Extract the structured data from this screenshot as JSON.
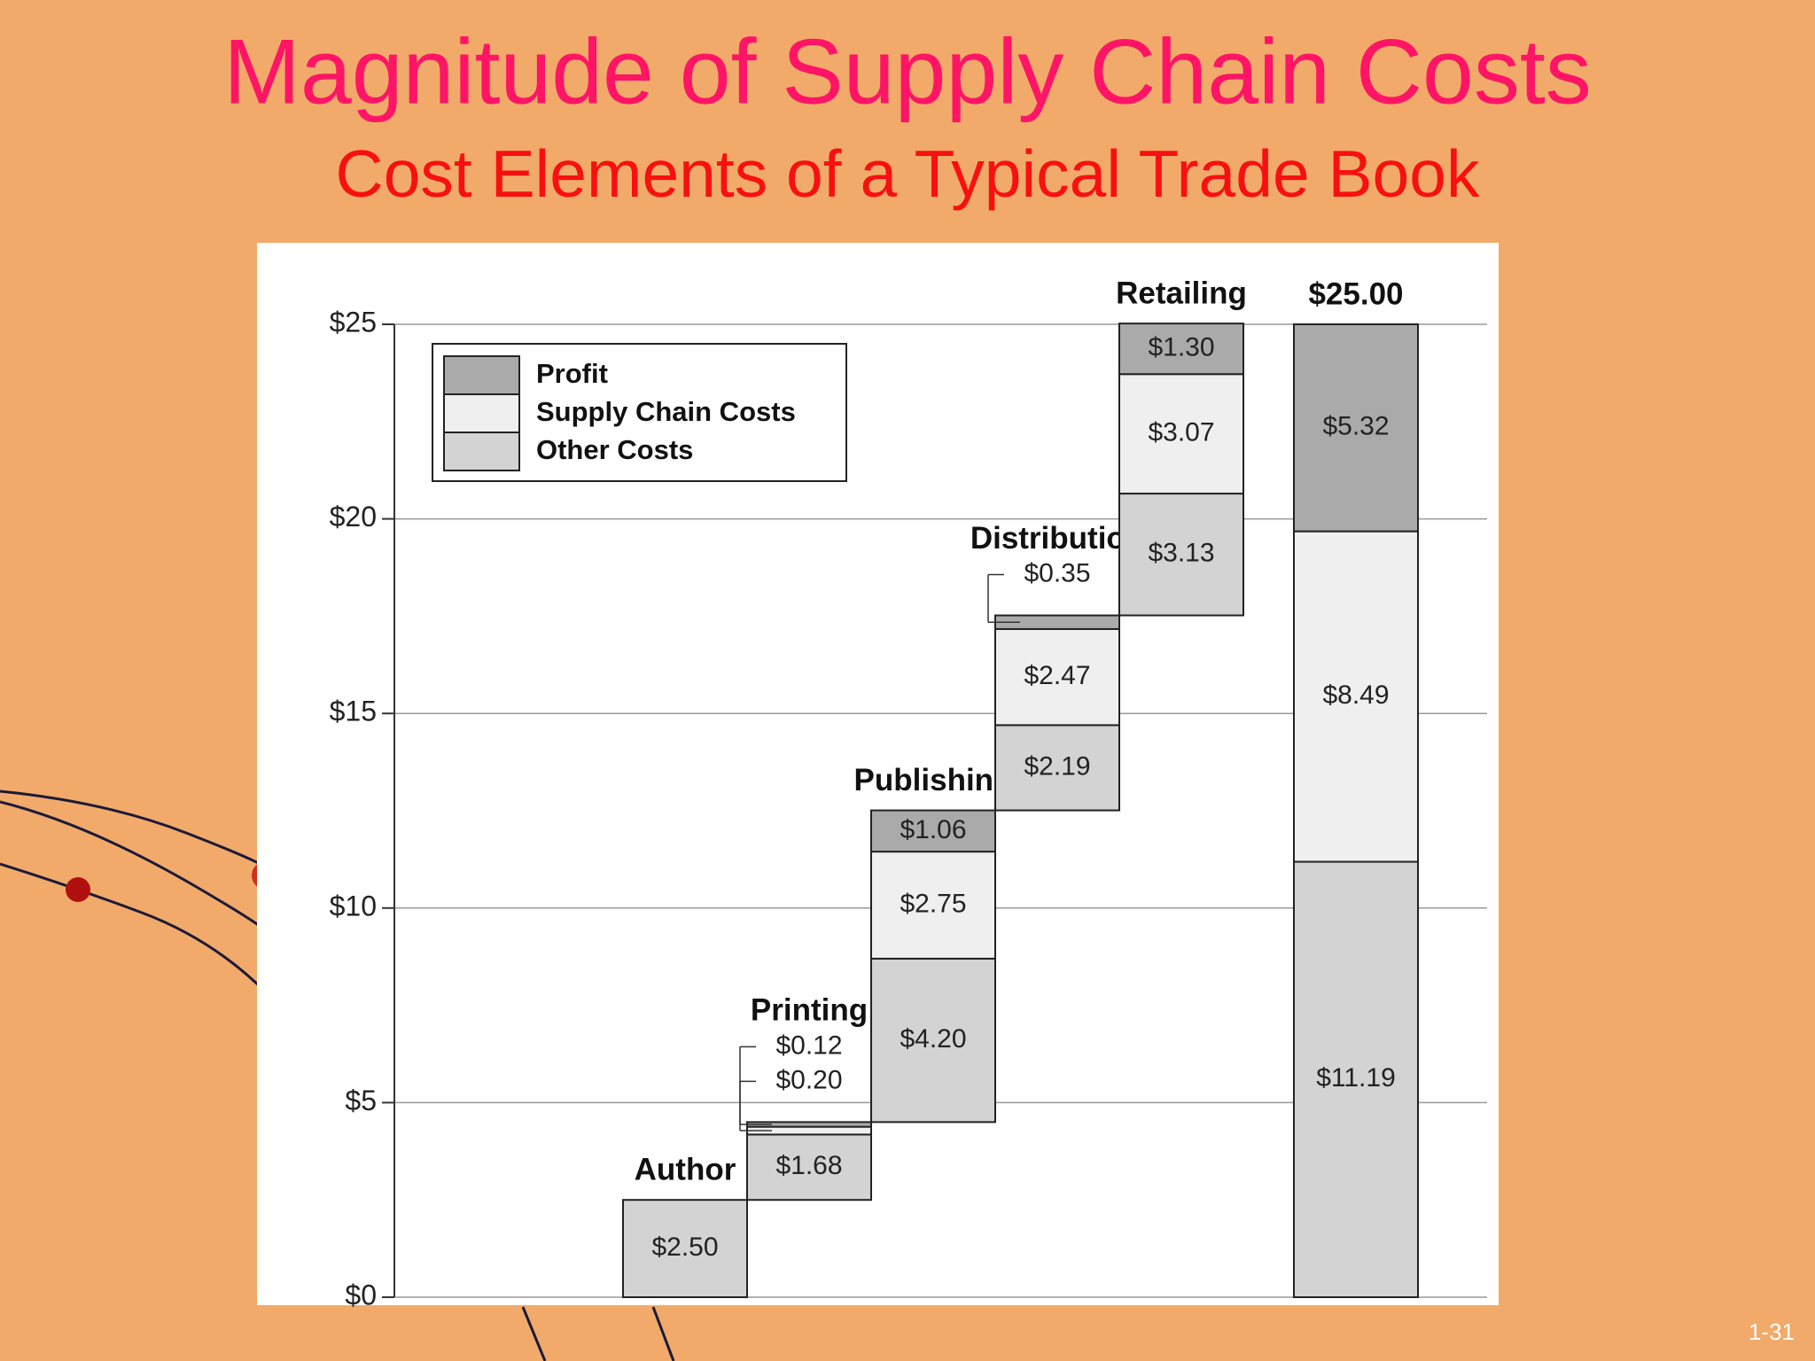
{
  "chart_data": {
    "type": "waterfall",
    "title": "Magnitude of Supply Chain Costs",
    "subtitle": "Cost Elements of a Typical Trade Book",
    "categories": [
      "Author",
      "Printing",
      "Publishing",
      "Distribution",
      "Retailing",
      "$25.00"
    ],
    "series": [
      {
        "name": "Profit",
        "color": "#aaaaaa",
        "values": [
          null,
          0.12,
          1.06,
          0.35,
          1.3,
          5.32
        ],
        "value_labels": [
          null,
          "$0.12",
          "$1.06",
          "$0.35",
          "$1.30",
          "$5.32"
        ]
      },
      {
        "name": "Supply Chain Costs",
        "color": "#efefef",
        "values": [
          null,
          0.2,
          2.75,
          2.47,
          3.07,
          8.49
        ],
        "value_labels": [
          null,
          "$0.20",
          "$2.75",
          "$2.47",
          "$3.07",
          "$8.49"
        ]
      },
      {
        "name": "Other Costs",
        "color": "#d3d3d3",
        "values": [
          2.5,
          1.68,
          4.2,
          2.19,
          3.13,
          11.19
        ],
        "value_labels": [
          "$2.50",
          "$1.68",
          "$4.20",
          "$2.19",
          "$3.13",
          "$11.19"
        ]
      }
    ],
    "ylim": [
      0,
      25
    ],
    "yticks": [
      {
        "value": 0,
        "label": "$0"
      },
      {
        "value": 5,
        "label": "$5"
      },
      {
        "value": 10,
        "label": "$10"
      },
      {
        "value": 15,
        "label": "$15"
      },
      {
        "value": 20,
        "label": "$20"
      },
      {
        "value": 25,
        "label": "$25"
      }
    ],
    "grid": true,
    "legend": "top-left"
  },
  "slide_number": "1-31"
}
